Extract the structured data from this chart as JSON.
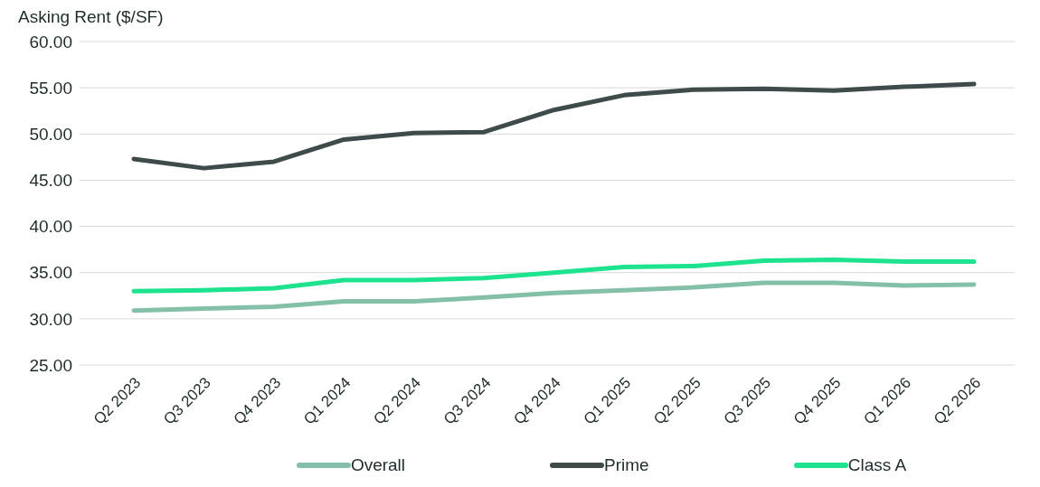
{
  "chart_data": {
    "type": "line",
    "ylabel": "Asking Rent ($/SF)",
    "categories": [
      "Q2 2023",
      "Q3 2023",
      "Q4 2023",
      "Q1 2024",
      "Q2 2024",
      "Q3 2024",
      "Q4 2024",
      "Q1 2025",
      "Q2 2025",
      "Q3 2025",
      "Q4 2025",
      "Q1 2026",
      "Q2 2026"
    ],
    "series": [
      {
        "name": "Overall",
        "color": "#84bfa8",
        "values": [
          30.9,
          31.1,
          31.3,
          31.9,
          31.9,
          32.3,
          32.8,
          33.1,
          33.4,
          33.9,
          33.9,
          33.6,
          33.7
        ]
      },
      {
        "name": "Prime",
        "color": "#3f4b4a",
        "values": [
          47.3,
          46.3,
          47.0,
          49.4,
          50.1,
          50.2,
          52.6,
          54.2,
          54.8,
          54.9,
          54.7,
          55.1,
          55.4
        ]
      },
      {
        "name": "Class A",
        "color": "#1de28e",
        "values": [
          33.0,
          33.1,
          33.3,
          34.2,
          34.2,
          34.4,
          35.0,
          35.6,
          35.7,
          36.3,
          36.4,
          36.2,
          36.2
        ]
      }
    ],
    "ylim": [
      25,
      60
    ],
    "yticks": [
      {
        "value": 25,
        "label": "25.00"
      },
      {
        "value": 30,
        "label": "30.00"
      },
      {
        "value": 35,
        "label": "35.00"
      },
      {
        "value": 40,
        "label": "40.00"
      },
      {
        "value": 45,
        "label": "45.00"
      },
      {
        "value": 50,
        "label": "50.00"
      },
      {
        "value": 55,
        "label": "55.00"
      },
      {
        "value": 60,
        "label": "60.00"
      }
    ],
    "grid": "y",
    "legend": "bottom",
    "marker": "none",
    "line_style": "solid"
  }
}
